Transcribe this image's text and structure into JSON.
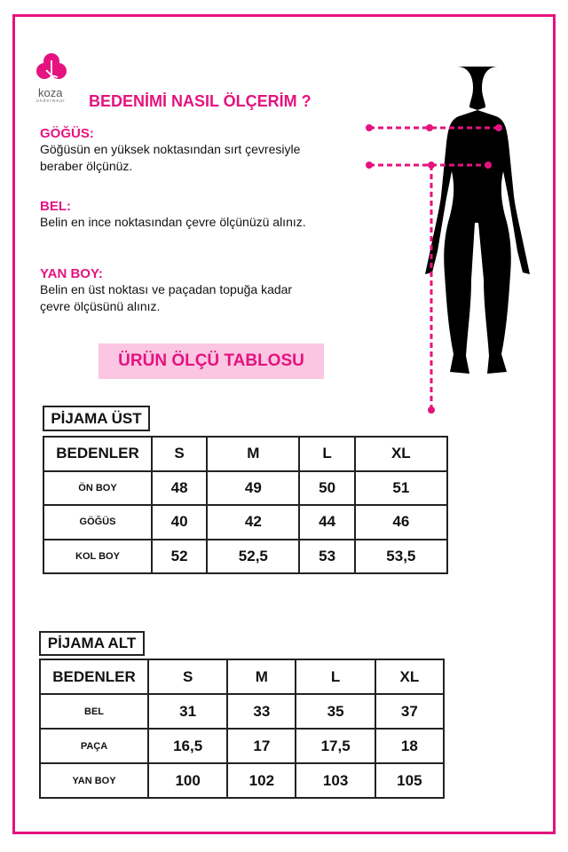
{
  "brand": {
    "name": "koza",
    "tagline": "underwear",
    "color": "#e4137f"
  },
  "title": "BEDENİMİ NASIL ÖLÇERİM ?",
  "sections": [
    {
      "heading": "GÖĞÜS:",
      "lines": [
        "Göğüsün en yüksek noktasından sırt çevresiyle",
        "beraber ölçünüz."
      ]
    },
    {
      "heading": "BEL:",
      "lines": [
        "Belin en ince noktasından çevre ölçünüzü alınız."
      ]
    },
    {
      "heading": "YAN BOY:",
      "lines": [
        "Belin en üst noktası ve paçadan topuğa kadar",
        "çevre ölçüsünü alınız."
      ]
    }
  ],
  "banner": "ÜRÜN ÖLÇÜ TABLOSU",
  "tables": [
    {
      "title": "PİJAMA ÜST",
      "header": [
        "BEDENLER",
        "S",
        "M",
        "L",
        "XL"
      ],
      "rows": [
        [
          "ÖN BOY",
          "48",
          "49",
          "50",
          "51"
        ],
        [
          "GÖĞÜS",
          "40",
          "42",
          "44",
          "46"
        ],
        [
          "KOL BOY",
          "52",
          "52,5",
          "53",
          "53,5"
        ]
      ]
    },
    {
      "title": "PİJAMA ALT",
      "header": [
        "BEDENLER",
        "S",
        "M",
        "L",
        "XL"
      ],
      "rows": [
        [
          "BEL",
          "31",
          "33",
          "35",
          "37"
        ],
        [
          "PAÇA",
          "16,5",
          "17",
          "17,5",
          "18"
        ],
        [
          "YAN BOY",
          "100",
          "102",
          "103",
          "105"
        ]
      ]
    }
  ]
}
